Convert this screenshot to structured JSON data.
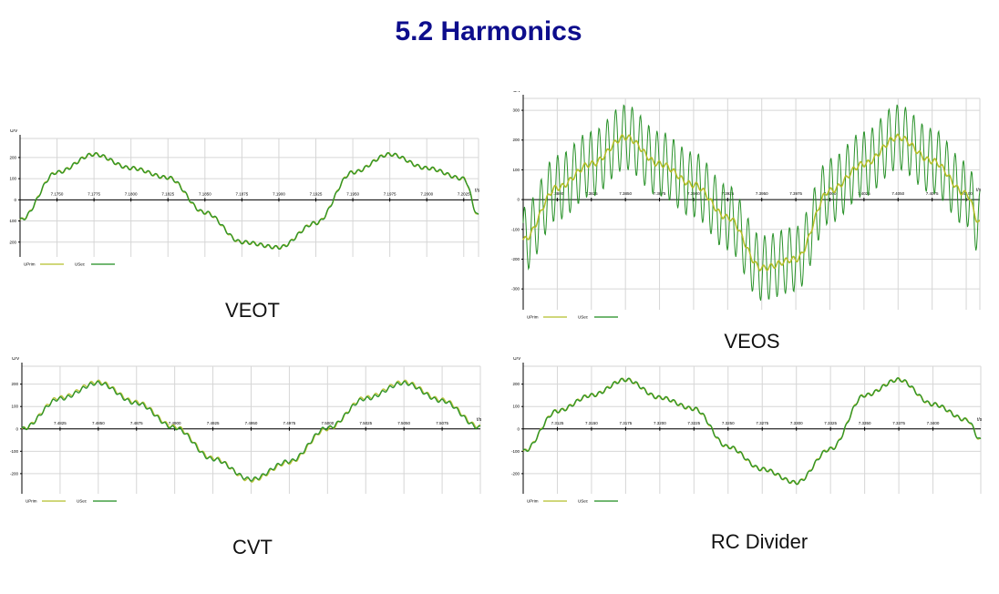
{
  "title": "5.2 Harmonics",
  "colors": {
    "title": "#0d0d8c",
    "uprim": "#b5bf2a",
    "usec": "#1f8c1f",
    "grid": "#d6d6d6"
  },
  "charts": [
    {
      "caption": "VEOT",
      "y_unit": "U/V",
      "x_unit": "t/s",
      "x_ticks": [
        "7.1750",
        "7.1775",
        "7.1800",
        "7.1825",
        "7.1850",
        "7.1875",
        "7.1900",
        "7.1925",
        "7.1950",
        "7.1975",
        "7.2000",
        "7.2025"
      ],
      "y_ticks": [
        "200",
        "100",
        "0",
        "-100",
        "-200"
      ],
      "legend": [
        "UPrim",
        "USec"
      ]
    },
    {
      "caption": "VEOS",
      "y_unit": "U/V",
      "x_unit": "t/s",
      "x_ticks": [
        "7.3800",
        "7.3825",
        "7.3850",
        "7.3875",
        "7.3900",
        "7.3925",
        "7.3950",
        "7.3975",
        "7.4000",
        "7.4025",
        "7.4050",
        "7.4075",
        "7.4100"
      ],
      "y_ticks": [
        "300",
        "200",
        "100",
        "0",
        "-100",
        "-200",
        "-300"
      ],
      "legend": [
        "UPrim",
        "USec"
      ]
    },
    {
      "caption": "CVT",
      "y_unit": "U/V",
      "x_unit": "t/s",
      "x_ticks": [
        "7.4825",
        "7.4850",
        "7.4875",
        "7.4900",
        "7.4925",
        "7.4950",
        "7.4975",
        "7.5000",
        "7.5025",
        "7.5050",
        "7.5075"
      ],
      "y_ticks": [
        "200",
        "100",
        "0",
        "-100",
        "-200"
      ],
      "legend": [
        "UPrim",
        "USec"
      ]
    },
    {
      "caption": "RC Divider",
      "y_unit": "U/V",
      "x_unit": "t/s",
      "x_ticks": [
        "7.3125",
        "7.3150",
        "7.3175",
        "7.3200",
        "7.3225",
        "7.3250",
        "7.3275",
        "7.3300",
        "7.3325",
        "7.3350",
        "7.3375",
        "7.3400"
      ],
      "y_ticks": [
        "200",
        "100",
        "0",
        "-100",
        "-200"
      ],
      "legend": [
        "UPrim",
        "USec"
      ]
    }
  ],
  "chart_data": [
    {
      "type": "line",
      "name": "VEOT",
      "x": [
        7.1725,
        7.175,
        7.1775,
        7.18,
        7.1825,
        7.185,
        7.1875,
        7.19,
        7.1925,
        7.195,
        7.1975,
        7.2,
        7.2025,
        7.2035
      ],
      "series": [
        {
          "name": "UPrim",
          "values": [
            -95,
            130,
            215,
            150,
            105,
            -60,
            -200,
            -225,
            -110,
            130,
            215,
            150,
            100,
            -75
          ]
        },
        {
          "name": "USec",
          "values": [
            -95,
            130,
            215,
            150,
            105,
            -60,
            -200,
            -225,
            -110,
            130,
            215,
            150,
            100,
            -75
          ]
        }
      ],
      "ylim": [
        -270,
        290
      ]
    },
    {
      "type": "line",
      "name": "VEOS",
      "x": [
        7.3775,
        7.38,
        7.3825,
        7.385,
        7.3875,
        7.39,
        7.3925,
        7.395,
        7.3975,
        7.4,
        7.4025,
        7.405,
        7.4075,
        7.41,
        7.411
      ],
      "series": [
        {
          "name": "UPrim",
          "values": [
            -135,
            40,
            120,
            210,
            120,
            50,
            -60,
            -230,
            -200,
            30,
            120,
            210,
            130,
            20,
            -80
          ]
        },
        {
          "name": "USec",
          "values": [
            -135,
            40,
            120,
            210,
            120,
            50,
            -60,
            -230,
            -200,
            30,
            120,
            210,
            130,
            20,
            -80
          ],
          "ripple": 110
        }
      ],
      "ylim": [
        -370,
        340
      ]
    },
    {
      "type": "line",
      "name": "CVT",
      "x": [
        7.48,
        7.4825,
        7.485,
        7.4875,
        7.49,
        7.4925,
        7.495,
        7.4975,
        7.5,
        7.5025,
        7.505,
        7.5075,
        7.51
      ],
      "series": [
        {
          "name": "UPrim",
          "values": [
            0,
            140,
            210,
            120,
            10,
            -130,
            -230,
            -150,
            0,
            140,
            210,
            130,
            10
          ]
        },
        {
          "name": "USec",
          "values": [
            0,
            135,
            205,
            115,
            5,
            -135,
            -225,
            -145,
            5,
            135,
            205,
            125,
            5
          ]
        }
      ],
      "ylim": [
        -290,
        280
      ]
    },
    {
      "type": "line",
      "name": "RC Divider",
      "x": [
        7.31,
        7.3125,
        7.315,
        7.3175,
        7.32,
        7.3225,
        7.325,
        7.3275,
        7.33,
        7.3325,
        7.335,
        7.3375,
        7.34,
        7.3425,
        7.3435
      ],
      "series": [
        {
          "name": "UPrim",
          "values": [
            -100,
            80,
            150,
            220,
            140,
            90,
            -80,
            -180,
            -240,
            -90,
            150,
            220,
            110,
            40,
            -50
          ]
        },
        {
          "name": "USec",
          "values": [
            -100,
            80,
            150,
            220,
            140,
            90,
            -80,
            -180,
            -240,
            -90,
            150,
            220,
            110,
            40,
            -50
          ]
        }
      ],
      "ylim": [
        -290,
        280
      ]
    }
  ]
}
